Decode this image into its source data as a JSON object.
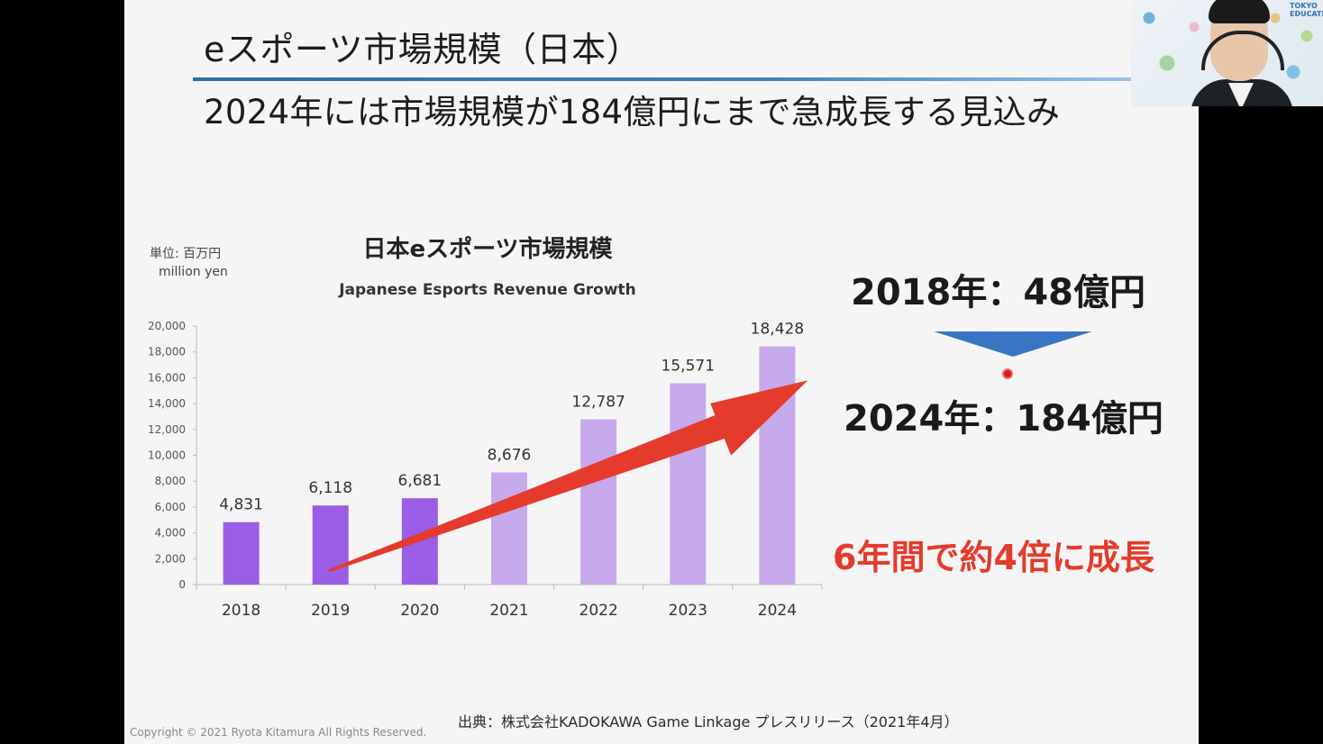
{
  "slide": {
    "title": "eスポーツ市場規模（日本）",
    "subtitle": "2024年には市場規模が184億円にまで急成長する見込み",
    "unit_label_ja": "単位: 百万円",
    "unit_label_en": "million yen",
    "source": "出典：株式会社KADOKAWA Game Linkage プレスリリース（2021年4月）",
    "copyright": "Copyright © 2021 Ryota Kitamura All Rights Reserved.",
    "callout_2018": "2018年：48億円",
    "callout_2024": "2024年：184億円",
    "callout_growth": "6年間で約4倍に成長",
    "colors": {
      "rule_blue": "#3f80bf",
      "arrow_red": "#e43b2c",
      "triangle_blue": "#3876c4"
    }
  },
  "webcam": {
    "logo_line1": "TOKYO",
    "logo_line2": "EDUCATION"
  },
  "chart_data": {
    "type": "bar",
    "title": "日本eスポーツ市場規模",
    "subtitle": "Japanese Esports Revenue Growth",
    "categories": [
      "2018",
      "2019",
      "2020",
      "2021",
      "2022",
      "2023",
      "2024"
    ],
    "values": [
      4831,
      6118,
      6681,
      8676,
      12787,
      15571,
      18428
    ],
    "value_labels": [
      "4,831",
      "6,118",
      "6,681",
      "8,676",
      "12,787",
      "15,571",
      "18,428"
    ],
    "bar_colors": [
      "#9b5de5",
      "#9b5de5",
      "#9b5de5",
      "#c6aaec",
      "#c6aaec",
      "#c6aaec",
      "#c6aaec"
    ],
    "ylim": [
      0,
      20000
    ],
    "yticks": [
      0,
      2000,
      4000,
      6000,
      8000,
      10000,
      12000,
      14000,
      16000,
      18000,
      20000
    ],
    "ytick_labels": [
      "0",
      "2,000",
      "4,000",
      "6,000",
      "8,000",
      "10,000",
      "12,000",
      "14,000",
      "16,000",
      "18,000",
      "20,000"
    ],
    "grid": false,
    "trend_arrow": {
      "from_category": "2019",
      "to_category": "2024",
      "color": "#e43b2c"
    }
  }
}
